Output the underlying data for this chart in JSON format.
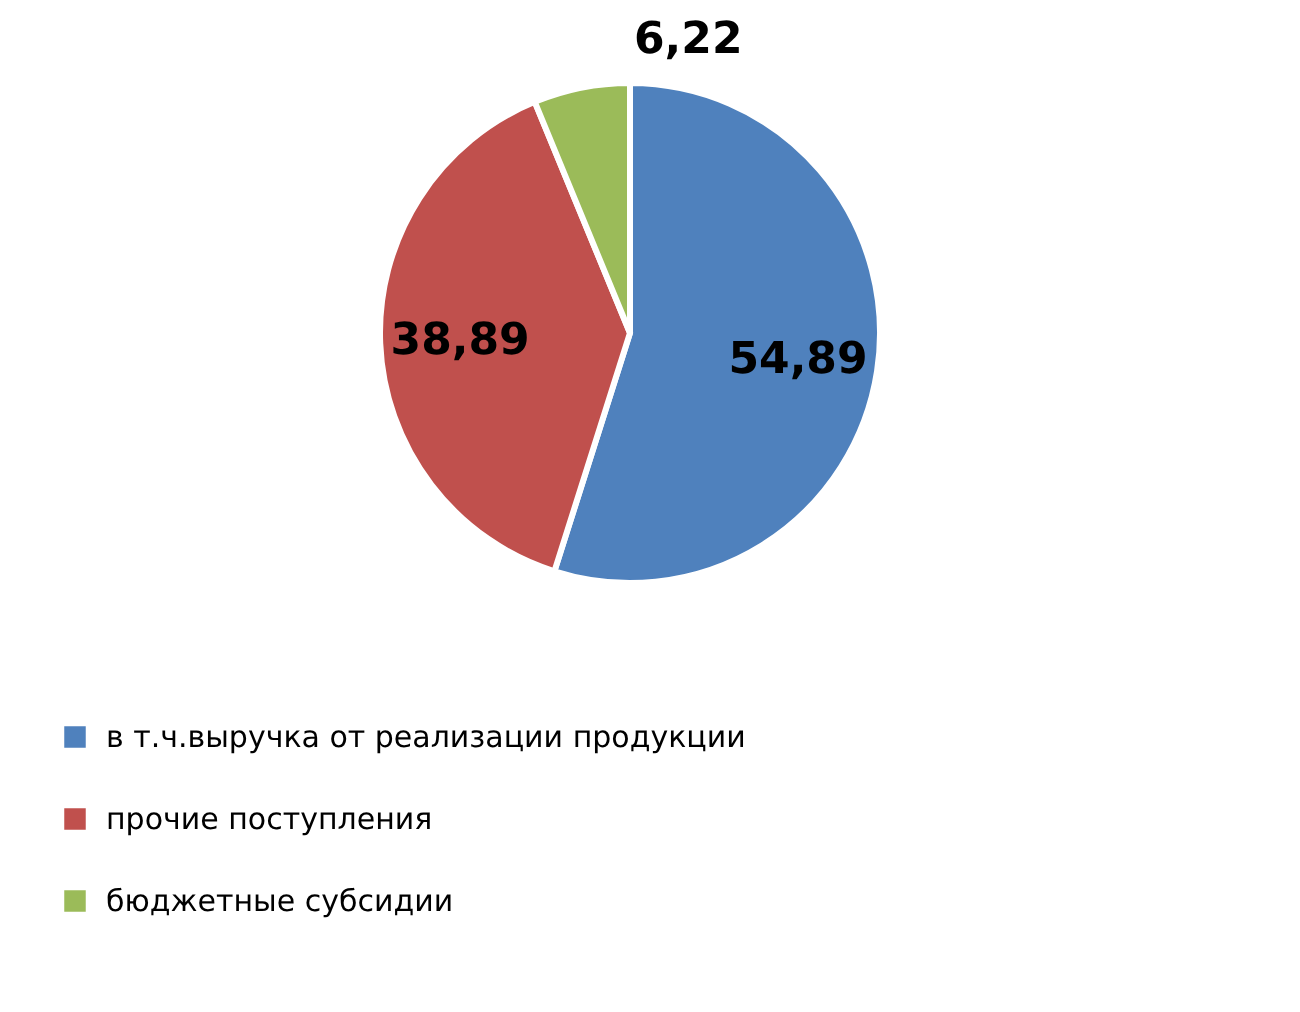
{
  "chart_data": {
    "type": "pie",
    "categories": [
      "в т.ч.выручка от реализации продукции",
      "прочие поступления",
      "бюджетные субсидии"
    ],
    "values": [
      54.89,
      38.89,
      6.22
    ],
    "value_labels": [
      "54,89",
      "38,89",
      "6,22"
    ],
    "colors": [
      "#4f81bd",
      "#c0504d",
      "#9bbb59"
    ],
    "legend": "bottom"
  }
}
